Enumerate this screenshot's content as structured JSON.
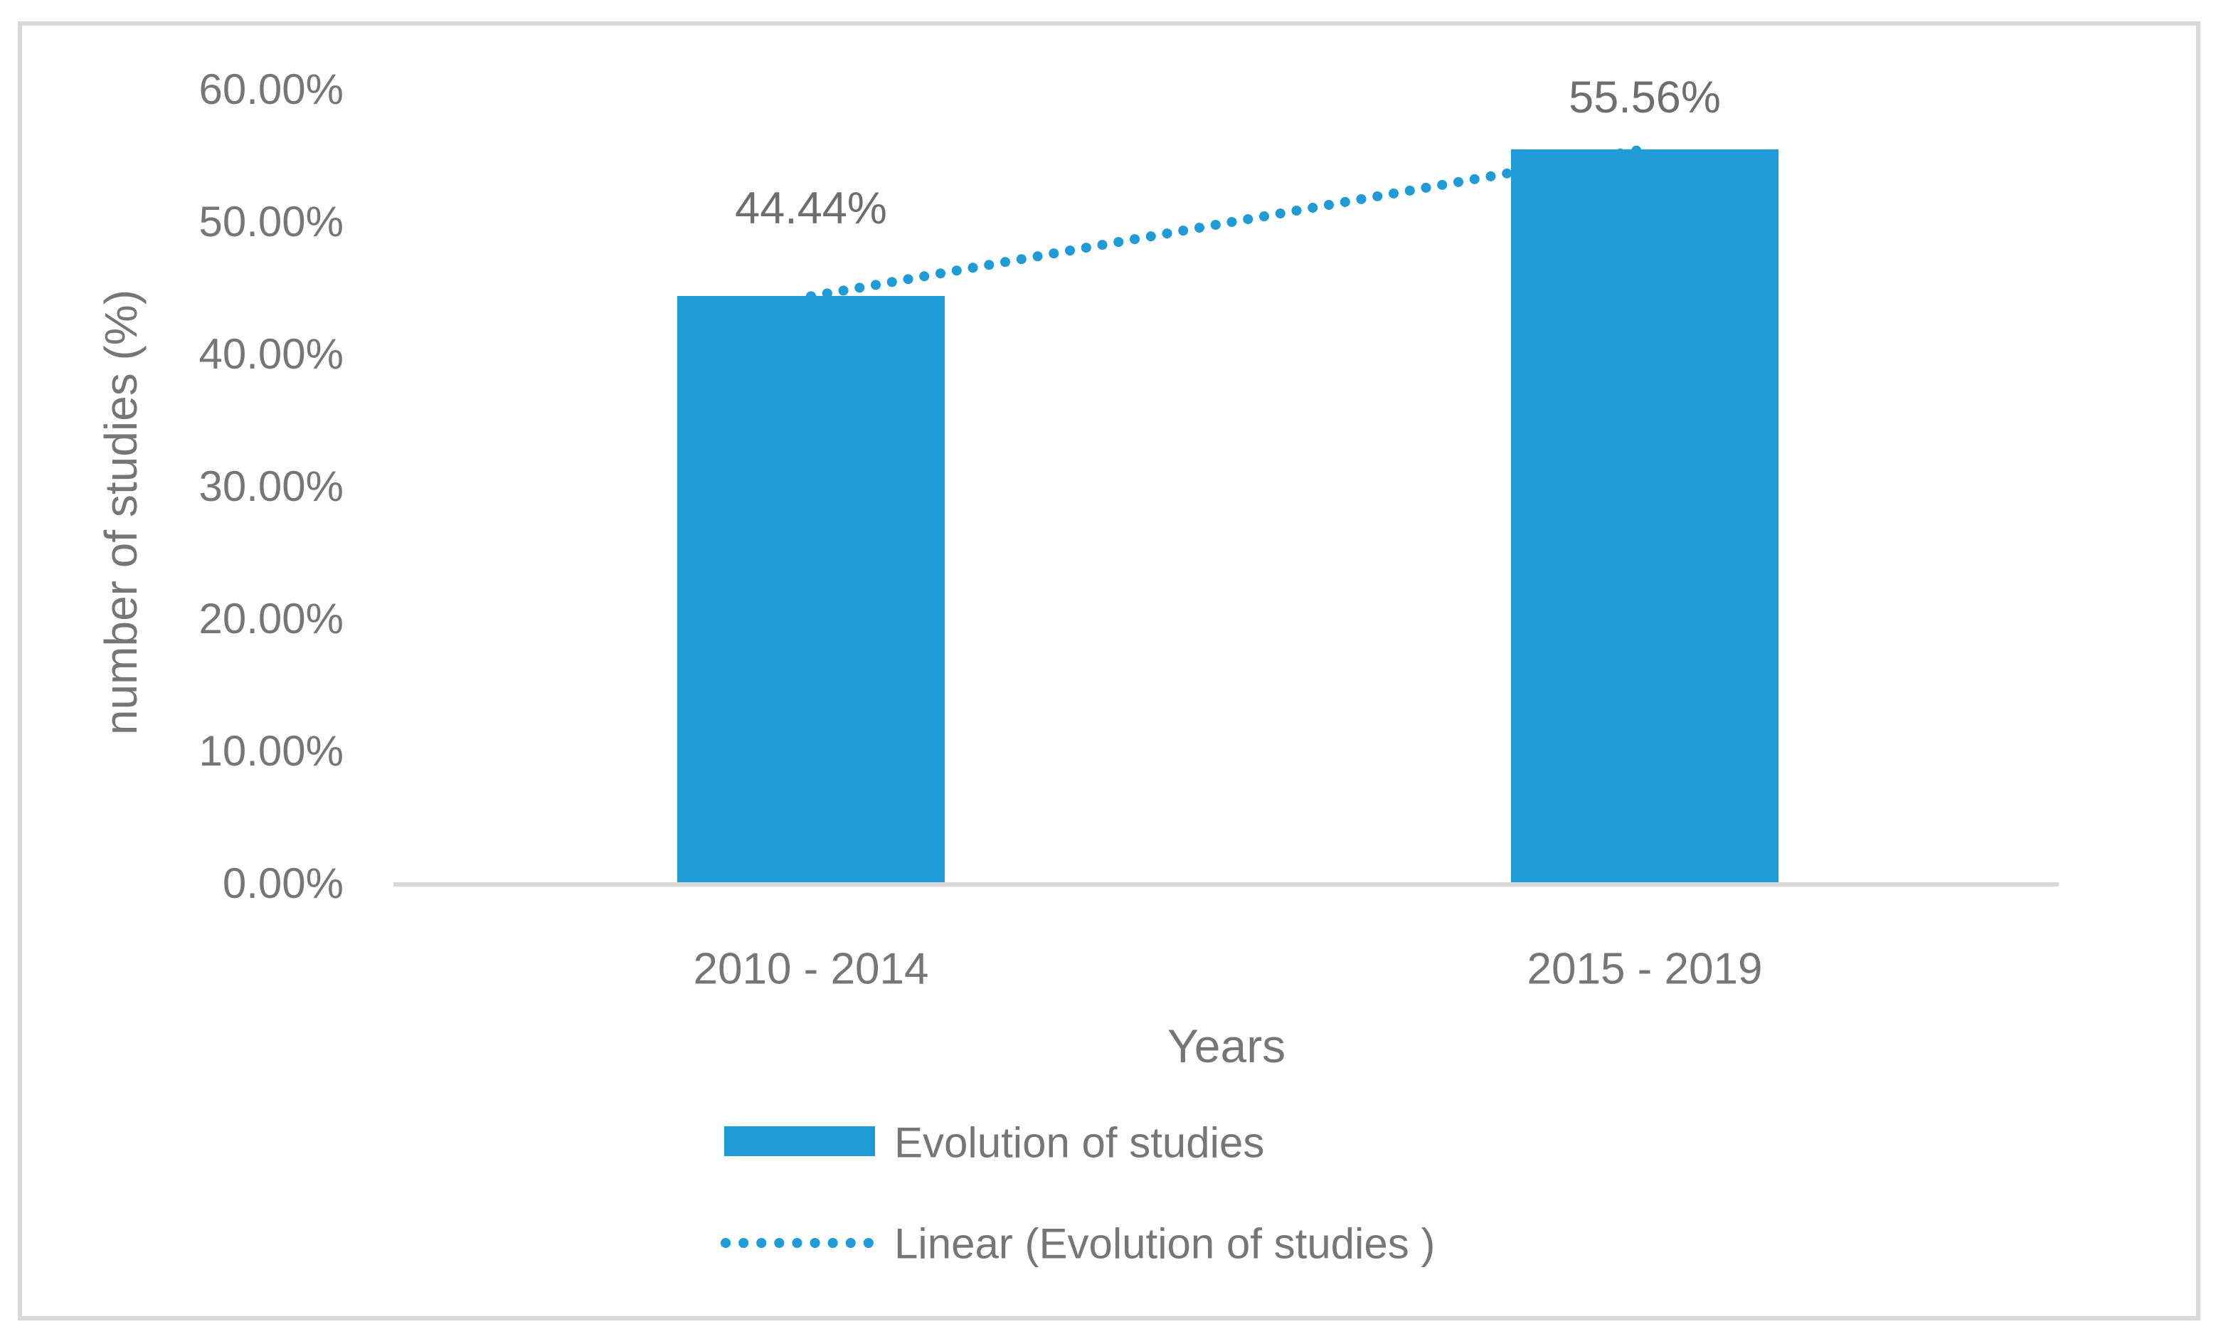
{
  "chart_data": {
    "type": "bar",
    "title": "",
    "categories": [
      "2010 - 2014",
      "2015 - 2019"
    ],
    "series": [
      {
        "name": "Evolution of studies",
        "values": [
          44.44,
          55.56
        ],
        "data_labels": [
          "44.44%",
          "55.56%"
        ]
      }
    ],
    "trendline": {
      "label": "Linear (Evolution of studies )",
      "series": "Evolution of studies",
      "type": "linear",
      "style": "dotted",
      "start_value": 44.44,
      "end_value": 55.56
    },
    "xlabel": "Years",
    "ylabel": "number of studies (%)",
    "ylim": [
      0,
      60
    ],
    "yticks": [
      {
        "value": 0,
        "label": "0.00%"
      },
      {
        "value": 10,
        "label": "10.00%"
      },
      {
        "value": 20,
        "label": "20.00%"
      },
      {
        "value": 30,
        "label": "30.00%"
      },
      {
        "value": 40,
        "label": "40.00%"
      },
      {
        "value": 50,
        "label": "50.00%"
      },
      {
        "value": 60,
        "label": "60.00%"
      }
    ],
    "grid": false,
    "legend_position": "bottom",
    "legend": [
      "Evolution of studies",
      "Linear (Evolution of studies )"
    ],
    "colors": {
      "bar": "#1F9BD7",
      "trendline": "#1F9BD7",
      "text": "#767676",
      "axis_line": "#D9D9D9",
      "border": "#D9D9D9",
      "background": "#FFFFFF"
    }
  }
}
